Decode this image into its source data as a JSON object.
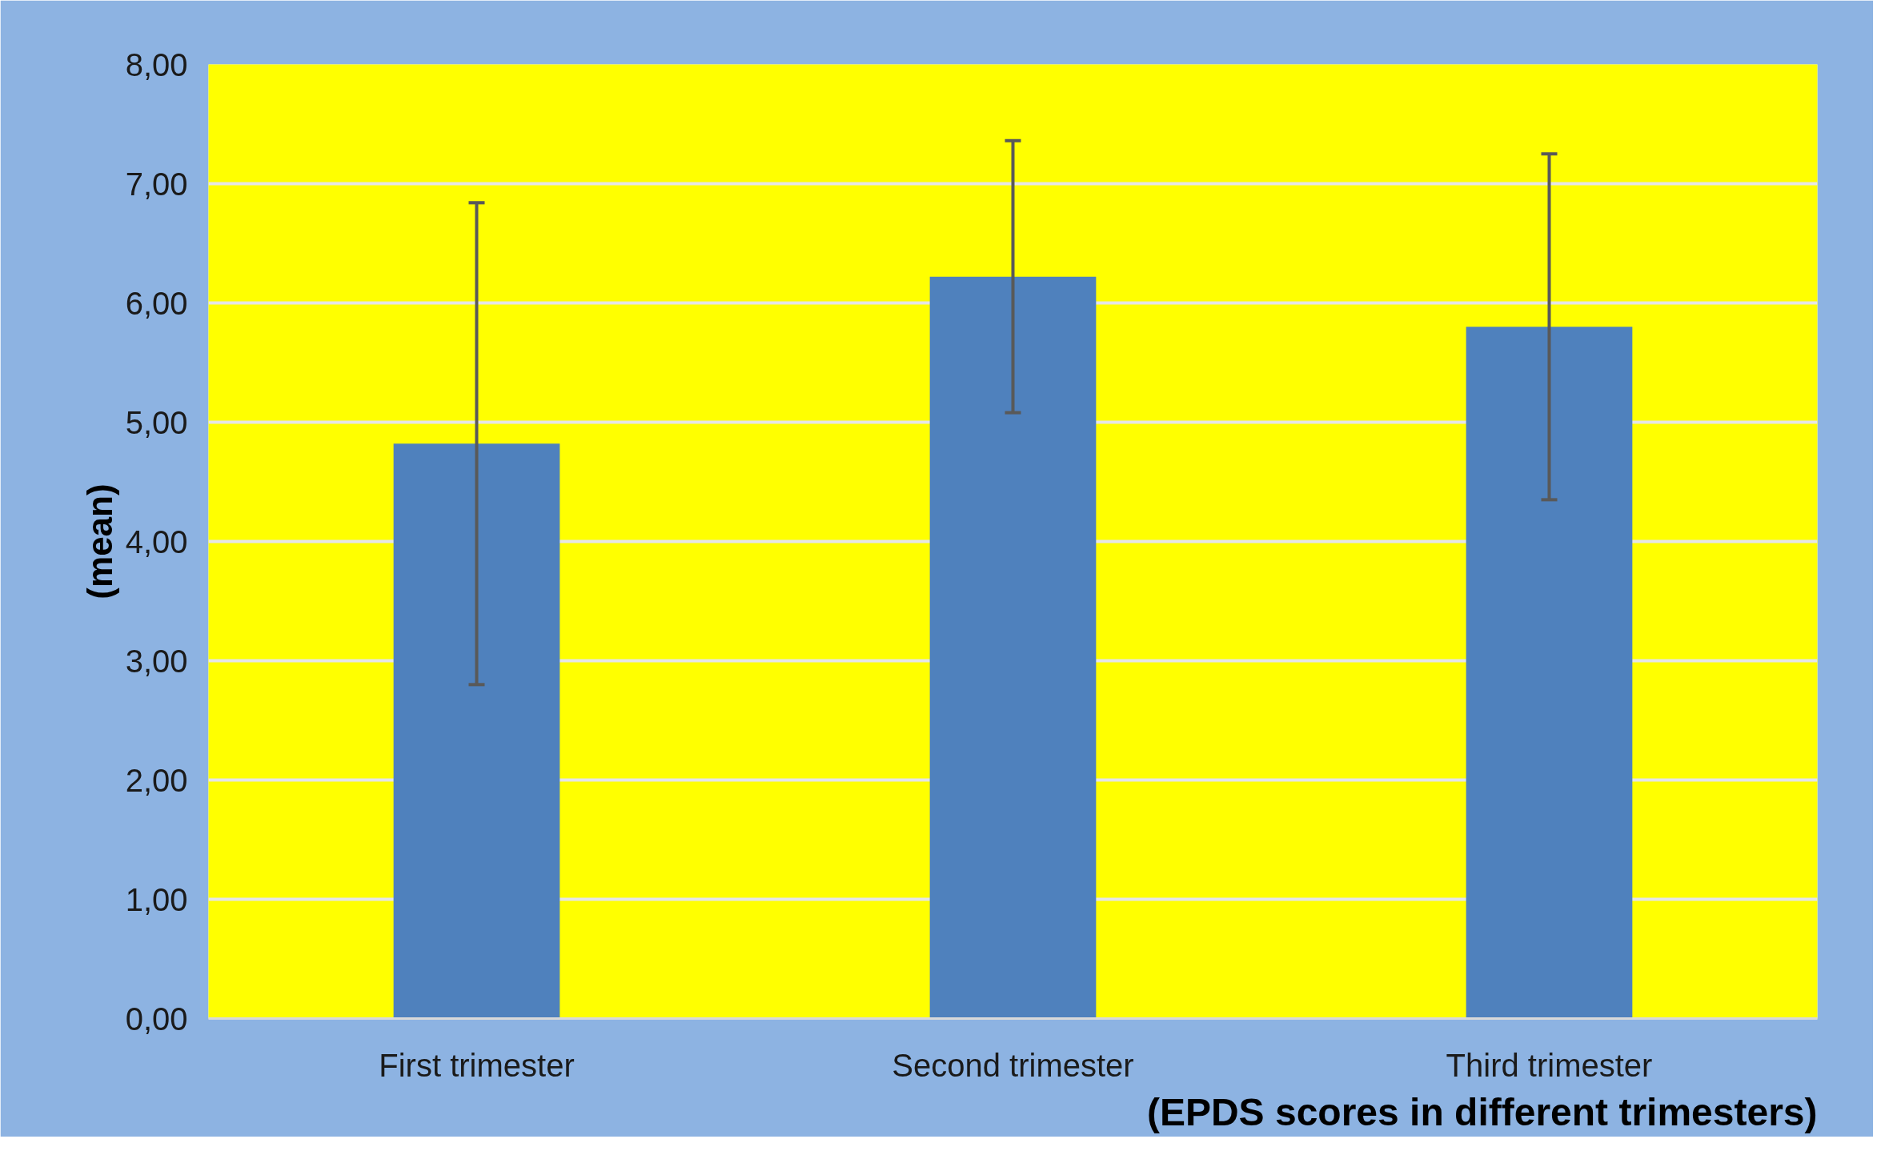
{
  "chart_data": {
    "type": "bar",
    "xlabel": "(EPDS scores in different trimesters)",
    "ylabel": "(mean)",
    "categories": [
      "First trimester",
      "Second trimester",
      "Third trimester"
    ],
    "values": [
      4.82,
      6.22,
      5.8
    ],
    "errors": [
      2.02,
      1.14,
      1.45
    ],
    "color": "#4f81bd",
    "ylim": [
      0,
      8
    ],
    "yticks": [
      {
        "value": 0,
        "label": "0,00"
      },
      {
        "value": 1,
        "label": "1,00"
      },
      {
        "value": 2,
        "label": "2,00"
      },
      {
        "value": 3,
        "label": "3,00"
      },
      {
        "value": 4,
        "label": "4,00"
      },
      {
        "value": 5,
        "label": "5,00"
      },
      {
        "value": 6,
        "label": "6,00"
      },
      {
        "value": 7,
        "label": "7,00"
      },
      {
        "value": 8,
        "label": "8,00"
      }
    ],
    "grid": "y"
  }
}
